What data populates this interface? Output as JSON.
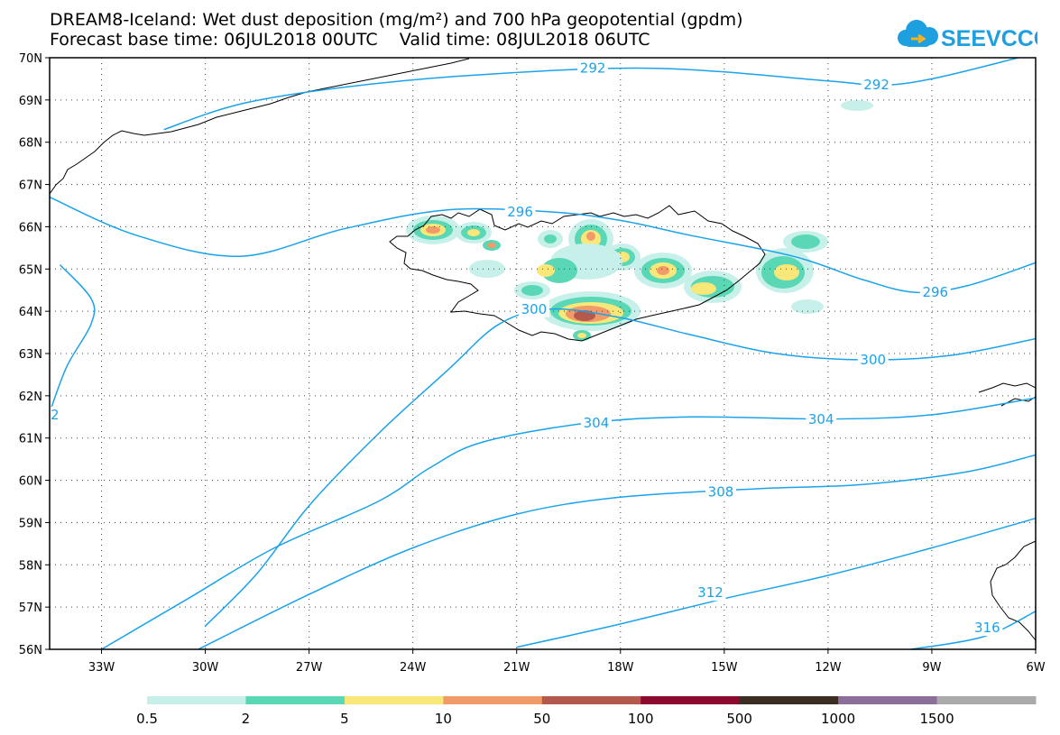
{
  "title": {
    "line1": "DREAM8-Iceland: Wet dust deposition (mg/m²) and 700 hPa geopotential (gpdm)",
    "line2": "Forecast base time: 06JUL2018 00UTC    Valid time: 08JUL2018 06UTC"
  },
  "logo": {
    "text": "SEEVCCC",
    "icon": "cloud-icon",
    "color": "#1e9fe0"
  },
  "map": {
    "lat_range": [
      56,
      70
    ],
    "lon_range": [
      -34.5,
      -6
    ],
    "lat_ticks": [
      "70N",
      "69N",
      "68N",
      "67N",
      "66N",
      "65N",
      "64N",
      "63N",
      "62N",
      "61N",
      "60N",
      "59N",
      "58N",
      "57N",
      "56N"
    ],
    "lon_ticks": [
      "33W",
      "30W",
      "27W",
      "24W",
      "21W",
      "18W",
      "15W",
      "12W",
      "9W",
      "6W"
    ],
    "contour_color": "#1aa3e8",
    "contours": [
      {
        "label": "292",
        "points": [
          [
            -31.2,
            68.3
          ],
          [
            -29,
            68.9
          ],
          [
            -26,
            69.3
          ],
          [
            -22,
            69.6
          ],
          [
            -17,
            69.75
          ],
          [
            -12,
            69.45
          ],
          [
            -10.5,
            69.35
          ],
          [
            -9,
            69.5
          ],
          [
            -6.5,
            70
          ]
        ],
        "label_at": [
          [
            -18.8,
            69.75
          ],
          [
            -10.6,
            69.36
          ]
        ]
      },
      {
        "label": "296",
        "points": [
          [
            -34.5,
            66.7
          ],
          [
            -32,
            65.8
          ],
          [
            -29,
            65.3
          ],
          [
            -26,
            65.95
          ],
          [
            -23,
            66.4
          ],
          [
            -20,
            66.35
          ],
          [
            -18,
            66.15
          ],
          [
            -16,
            65.8
          ],
          [
            -13,
            65.3
          ],
          [
            -11,
            64.75
          ],
          [
            -9.5,
            64.45
          ],
          [
            -8,
            64.6
          ],
          [
            -6,
            65.15
          ]
        ],
        "label_at": [
          [
            -20.9,
            66.35
          ],
          [
            -8.9,
            64.45
          ]
        ]
      },
      {
        "label": "300",
        "points": [
          [
            -30,
            56.55
          ],
          [
            -28.5,
            57.8
          ],
          [
            -27,
            59.4
          ],
          [
            -25,
            61.1
          ],
          [
            -23,
            62.6
          ],
          [
            -21.5,
            63.7
          ],
          [
            -20,
            64.05
          ],
          [
            -18,
            63.85
          ],
          [
            -16,
            63.45
          ],
          [
            -13.5,
            63
          ],
          [
            -11,
            62.85
          ],
          [
            -8.5,
            62.95
          ],
          [
            -6,
            63.35
          ]
        ],
        "label_at": [
          [
            -20.5,
            64.05
          ],
          [
            -10.7,
            62.85
          ]
        ]
      },
      {
        "label": "304",
        "points": [
          [
            -33,
            56
          ],
          [
            -30.5,
            57.2
          ],
          [
            -28,
            58.4
          ],
          [
            -25,
            59.5
          ],
          [
            -23.5,
            60.3
          ],
          [
            -22,
            60.9
          ],
          [
            -19,
            61.35
          ],
          [
            -16,
            61.5
          ],
          [
            -12,
            61.45
          ],
          [
            -9,
            61.55
          ],
          [
            -6,
            61.95
          ]
        ],
        "label_at": [
          [
            -18.7,
            61.36
          ],
          [
            -12.2,
            61.44
          ]
        ]
      },
      {
        "label": "308",
        "points": [
          [
            -30.2,
            56
          ],
          [
            -27,
            57.3
          ],
          [
            -24,
            58.4
          ],
          [
            -21,
            59.2
          ],
          [
            -18,
            59.6
          ],
          [
            -14,
            59.8
          ],
          [
            -11,
            59.9
          ],
          [
            -8,
            60.2
          ],
          [
            -6,
            60.6
          ]
        ],
        "label_at": [
          [
            -15.1,
            59.72
          ]
        ]
      },
      {
        "label": "312",
        "points": [
          [
            -21,
            56.05
          ],
          [
            -18,
            56.6
          ],
          [
            -15,
            57.2
          ],
          [
            -12,
            57.75
          ],
          [
            -9,
            58.4
          ],
          [
            -6,
            59.1
          ]
        ],
        "label_at": [
          [
            -15.4,
            57.34
          ]
        ]
      },
      {
        "label": "316",
        "points": [
          [
            -9.6,
            56
          ],
          [
            -7.5,
            56.3
          ],
          [
            -6,
            56.9
          ]
        ],
        "label_at": [
          [
            -7.4,
            56.51
          ]
        ]
      },
      {
        "label": "",
        "points": [
          [
            -34.2,
            65.1
          ],
          [
            -33.3,
            64.3
          ],
          [
            -33.3,
            63.7
          ],
          [
            -34,
            62.7
          ],
          [
            -34.5,
            61.6
          ]
        ],
        "label_at": []
      }
    ],
    "corner_contour_fragment": "2",
    "dust_colors": {
      "c05": "#c8f0ea",
      "c2": "#5ad7b4",
      "c5": "#f9e77a",
      "c10": "#f29b6a",
      "c50": "#b45a4d"
    }
  },
  "legend": {
    "labels": [
      "0.5",
      "2",
      "5",
      "10",
      "50",
      "100",
      "500",
      "1000",
      "1500"
    ],
    "colors": [
      "#c8f0ea",
      "#5ad7b4",
      "#f9e77a",
      "#f29b6a",
      "#b45a4d",
      "#8c0a2d",
      "#3c2d23",
      "#8c6e9b",
      "#aaaaaa"
    ]
  }
}
